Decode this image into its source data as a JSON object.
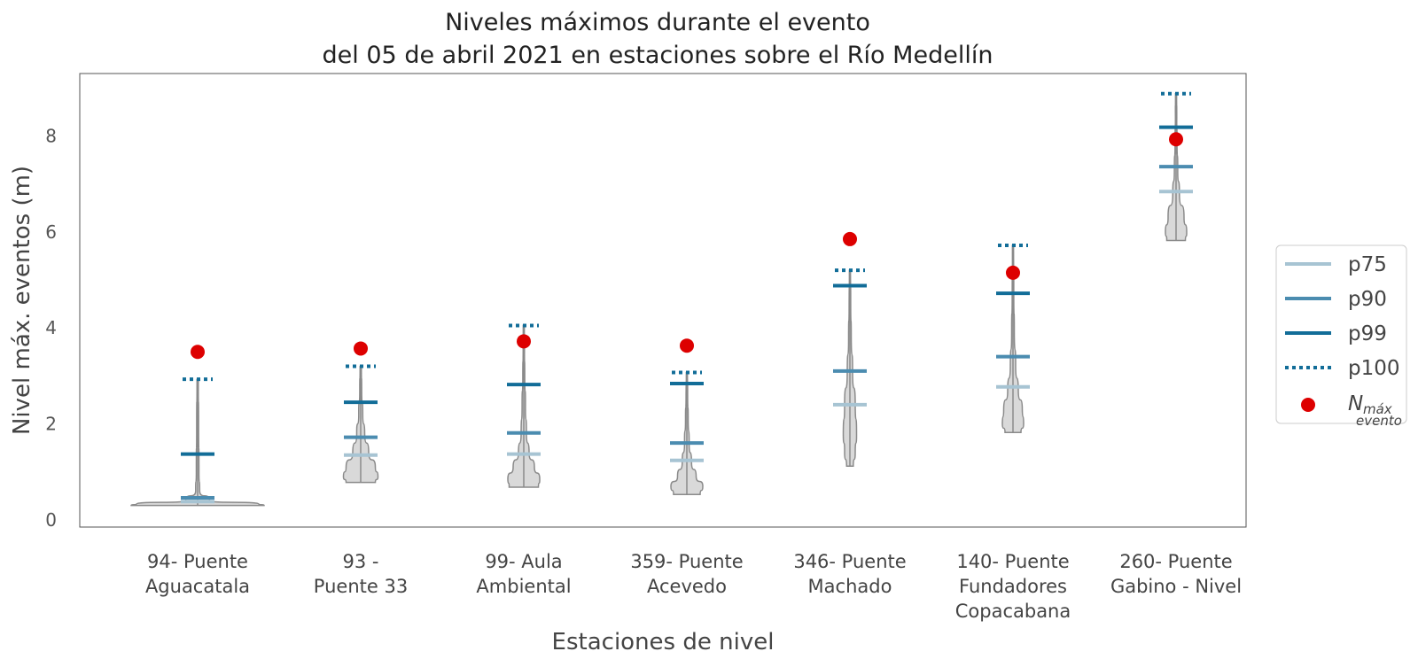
{
  "chart_data": {
    "type": "violin",
    "title_lines": [
      "Niveles máximos durante el evento",
      "del 05 de abril 2021 en estaciones sobre el Río Medellín"
    ],
    "xlabel": "Estaciones de nivel",
    "ylabel": "Nivel máx. eventos  (m)",
    "ylim": [
      -0.15,
      9.3
    ],
    "yticks": [
      0,
      2,
      4,
      6,
      8
    ],
    "grid": false,
    "legend_position": "right",
    "legend": {
      "p75": "p75",
      "p90": "p90",
      "p99": "p99",
      "p100": "p100",
      "nmax_main": "N",
      "nmax_sup": "máx",
      "nmax_sub": "evento"
    },
    "colors": {
      "p75": "#a7c4d3",
      "p90": "#4b8cb0",
      "p99": "#126d98",
      "p100": "#126d98",
      "nmax": "#dd0000",
      "violin_fill": "#d9d9d9",
      "violin_stroke": "#8a8a8a"
    },
    "stations": [
      {
        "label": [
          "94- Puente",
          "Aguacatala"
        ],
        "min": 0.3,
        "max": 2.93,
        "p75": 0.38,
        "p90": 0.46,
        "p99": 1.37,
        "p100": 2.93,
        "nmax": 3.5,
        "violin": {
          "y": [
            0.3,
            0.33,
            0.4,
            0.6,
            1.0,
            2.0,
            2.93
          ],
          "w": [
            1.0,
            0.92,
            0.18,
            0.03,
            0.02,
            0.015,
            0.01
          ]
        }
      },
      {
        "label": [
          "93 -",
          "Puente 33"
        ],
        "min": 0.78,
        "max": 3.2,
        "p75": 1.35,
        "p90": 1.72,
        "p99": 2.45,
        "p100": 3.2,
        "nmax": 3.57,
        "violin": {
          "y": [
            0.78,
            0.9,
            1.1,
            1.4,
            1.8,
            2.2,
            2.7,
            3.2
          ],
          "w": [
            0.22,
            0.26,
            0.22,
            0.12,
            0.06,
            0.03,
            0.015,
            0.01
          ]
        }
      },
      {
        "label": [
          "99- Aula",
          "Ambiental"
        ],
        "min": 0.68,
        "max": 4.05,
        "p75": 1.37,
        "p90": 1.81,
        "p99": 2.82,
        "p100": 4.05,
        "nmax": 3.72,
        "violin": {
          "y": [
            0.68,
            0.85,
            1.1,
            1.4,
            1.8,
            2.4,
            3.0,
            3.6,
            4.05
          ],
          "w": [
            0.22,
            0.24,
            0.16,
            0.08,
            0.04,
            0.025,
            0.015,
            0.01,
            0.008
          ]
        }
      },
      {
        "label": [
          "359- Puente",
          "Acevedo"
        ],
        "min": 0.53,
        "max": 3.07,
        "p75": 1.24,
        "p90": 1.6,
        "p99": 2.84,
        "p100": 3.07,
        "nmax": 3.63,
        "violin": {
          "y": [
            0.53,
            0.7,
            0.9,
            1.2,
            1.6,
            2.1,
            2.6,
            3.07
          ],
          "w": [
            0.2,
            0.24,
            0.14,
            0.07,
            0.035,
            0.02,
            0.012,
            0.008
          ]
        }
      },
      {
        "label": [
          "346- Puente",
          "Machado"
        ],
        "min": 1.12,
        "max": 5.2,
        "p75": 2.4,
        "p90": 3.1,
        "p99": 4.88,
        "p100": 5.2,
        "nmax": 5.85,
        "violin": {
          "y": [
            1.12,
            1.4,
            1.8,
            2.4,
            3.1,
            3.8,
            4.5,
            5.2
          ],
          "w": [
            0.05,
            0.08,
            0.1,
            0.08,
            0.04,
            0.02,
            0.012,
            0.008
          ]
        }
      },
      {
        "label": [
          "140- Puente",
          "Fundadores",
          "Copacabana"
        ],
        "min": 1.82,
        "max": 5.72,
        "p75": 2.77,
        "p90": 3.4,
        "p99": 4.72,
        "p100": 5.72,
        "nmax": 5.15,
        "violin": {
          "y": [
            1.82,
            2.0,
            2.3,
            2.7,
            3.2,
            3.9,
            4.7,
            5.72
          ],
          "w": [
            0.12,
            0.16,
            0.14,
            0.08,
            0.04,
            0.02,
            0.012,
            0.008
          ]
        }
      },
      {
        "label": [
          "260- Puente",
          "Gabino - Nivel"
        ],
        "min": 5.82,
        "max": 8.88,
        "p75": 6.84,
        "p90": 7.36,
        "p99": 8.18,
        "p100": 8.88,
        "nmax": 7.93,
        "violin": {
          "y": [
            5.82,
            6.0,
            6.3,
            6.8,
            7.3,
            7.9,
            8.4,
            8.88
          ],
          "w": [
            0.14,
            0.16,
            0.12,
            0.05,
            0.025,
            0.015,
            0.01,
            0.008
          ]
        }
      }
    ]
  }
}
